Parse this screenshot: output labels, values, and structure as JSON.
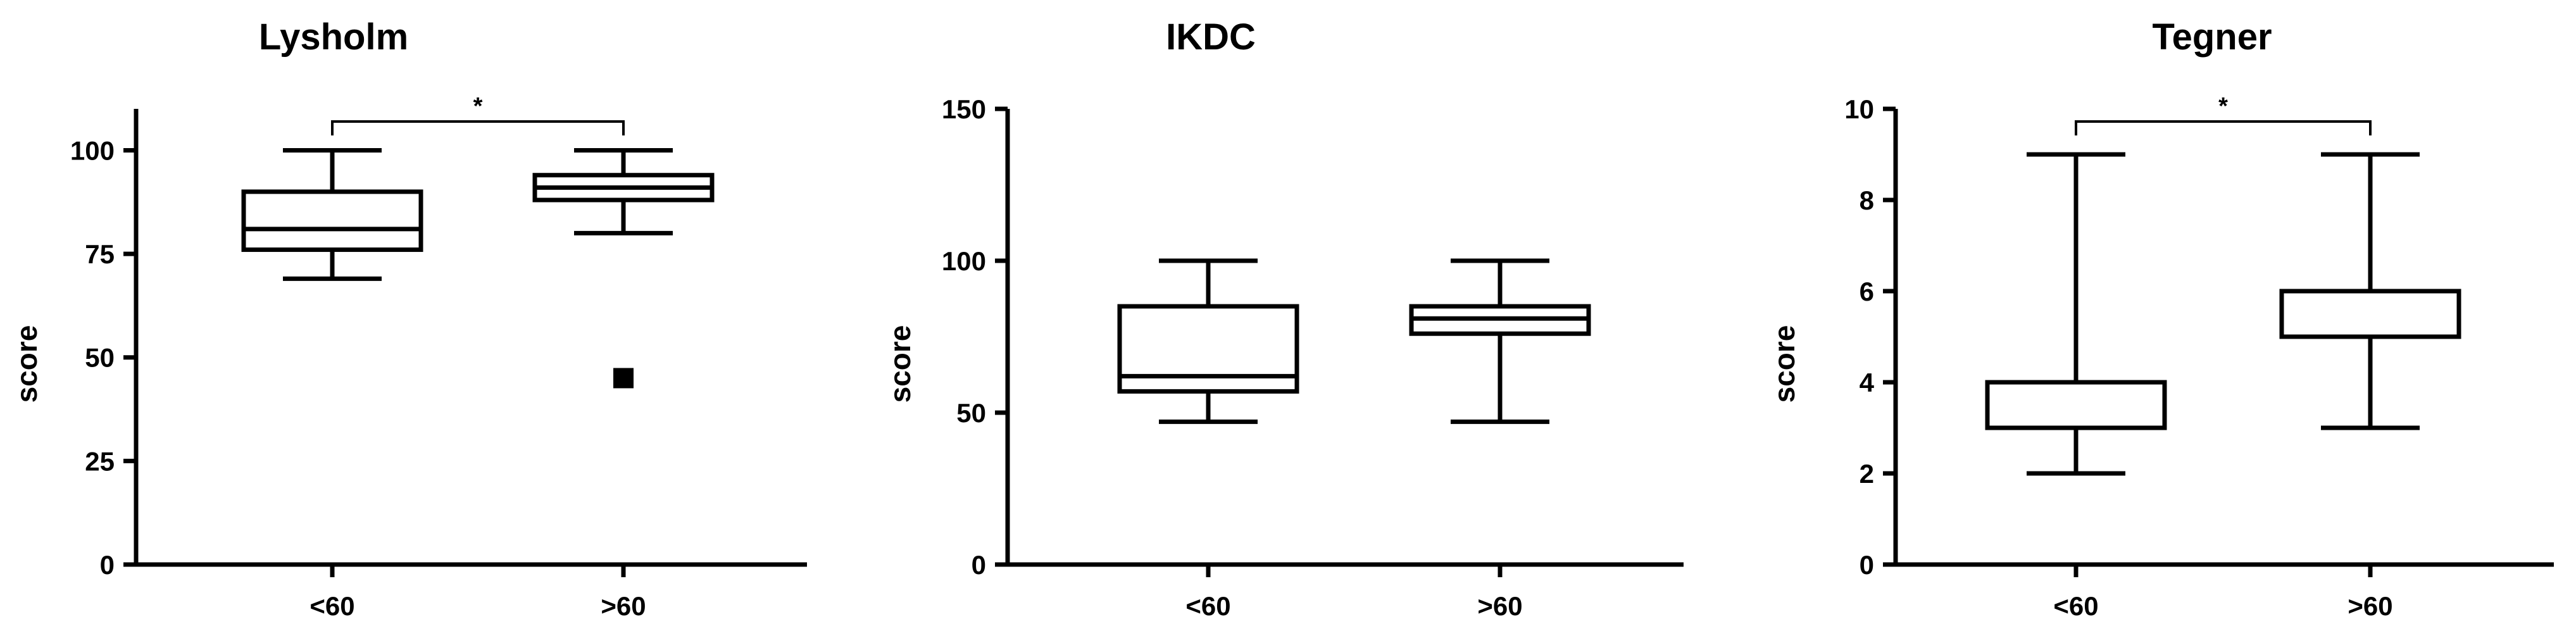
{
  "chart_data": [
    {
      "type": "box",
      "title": "Lysholm",
      "xlabel": "",
      "ylabel": "score",
      "ylim": [
        0,
        110
      ],
      "yticks": [
        0,
        25,
        50,
        75,
        100
      ],
      "ytick_labels": [
        "0",
        "25",
        "50",
        "75",
        "100"
      ],
      "categories": [
        "<60",
        ">60"
      ],
      "boxes": [
        {
          "category": "<60",
          "min": 69,
          "q1": 76,
          "median": 81,
          "q3": 90,
          "max": 100,
          "outliers": []
        },
        {
          "category": ">60",
          "min": 80,
          "q1": 88,
          "median": 91,
          "q3": 94,
          "max": 100,
          "outliers": [
            45
          ]
        }
      ],
      "significance": [
        {
          "from": "<60",
          "to": ">60",
          "label": "*"
        }
      ]
    },
    {
      "type": "box",
      "title": "IKDC",
      "xlabel": "",
      "ylabel": "score",
      "ylim": [
        0,
        150
      ],
      "yticks": [
        0,
        50,
        100,
        150
      ],
      "ytick_labels": [
        "0",
        "50",
        "100",
        "150"
      ],
      "categories": [
        "<60",
        ">60"
      ],
      "boxes": [
        {
          "category": "<60",
          "min": 47,
          "q1": 57,
          "median": 62,
          "q3": 85,
          "max": 100,
          "outliers": []
        },
        {
          "category": ">60",
          "min": 47,
          "q1": 76,
          "median": 81,
          "q3": 85,
          "max": 100,
          "outliers": []
        }
      ],
      "significance": []
    },
    {
      "type": "box",
      "title": "Tegner",
      "xlabel": "",
      "ylabel": "score",
      "ylim": [
        0,
        10
      ],
      "yticks": [
        0,
        2,
        4,
        6,
        8,
        10
      ],
      "ytick_labels": [
        "0",
        "2",
        "4",
        "6",
        "8",
        "10"
      ],
      "categories": [
        "<60",
        ">60"
      ],
      "boxes": [
        {
          "category": "<60",
          "min": 2,
          "q1": 3,
          "median": 4,
          "q3": 4,
          "max": 9,
          "outliers": []
        },
        {
          "category": ">60",
          "min": 3,
          "q1": 5,
          "median": 5,
          "q3": 6,
          "max": 9,
          "outliers": []
        }
      ],
      "significance": [
        {
          "from": "<60",
          "to": ">60",
          "label": "*"
        }
      ]
    }
  ]
}
